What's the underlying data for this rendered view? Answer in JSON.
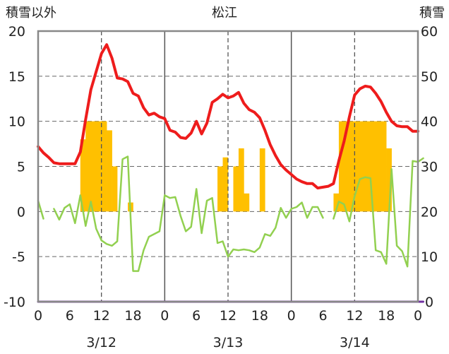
{
  "chart_data": {
    "type": "combo",
    "title": "松江",
    "left_axis": {
      "label": "積雪以外",
      "range": [
        -10,
        20
      ],
      "ticks": [
        "-10",
        "-5",
        "0",
        "5",
        "10",
        "15",
        "20"
      ]
    },
    "right_axis": {
      "label": "積雪",
      "range": [
        0,
        60
      ],
      "ticks": [
        "0",
        "10",
        "20",
        "30",
        "40",
        "50",
        "60"
      ]
    },
    "x_axis": {
      "range": [
        0,
        72
      ],
      "ticks": [
        0,
        6,
        12,
        18,
        24,
        30,
        36,
        42,
        48,
        54,
        60,
        66,
        72
      ],
      "tick_labels": [
        "0",
        "6",
        "12",
        "18",
        "0",
        "6",
        "12",
        "18",
        "0",
        "6",
        "12",
        "18",
        "0"
      ],
      "dates": [
        {
          "label": "3/12",
          "x": 12
        },
        {
          "label": "3/13",
          "x": 36
        },
        {
          "label": "3/14",
          "x": 60
        }
      ],
      "day_boundaries": [
        24,
        48
      ],
      "dashed_lines": [
        12,
        36,
        60
      ]
    },
    "grid": true,
    "series": [
      {
        "type": "bar",
        "axis": "left",
        "color": "#FFC000",
        "points": [
          [
            8,
            8
          ],
          [
            9,
            10
          ],
          [
            10,
            10
          ],
          [
            11,
            10
          ],
          [
            12,
            10
          ],
          [
            13,
            9
          ],
          [
            14,
            5
          ],
          [
            17,
            1
          ],
          [
            34,
            5
          ],
          [
            35,
            6
          ],
          [
            37,
            5
          ],
          [
            38,
            7
          ],
          [
            39,
            2
          ],
          [
            42,
            7
          ],
          [
            56,
            2
          ],
          [
            57,
            10
          ],
          [
            58,
            10
          ],
          [
            59,
            10
          ],
          [
            60,
            10
          ],
          [
            61,
            10
          ],
          [
            62,
            10
          ],
          [
            63,
            10
          ],
          [
            64,
            10
          ],
          [
            65,
            10
          ],
          [
            66,
            7
          ]
        ]
      },
      {
        "type": "line",
        "axis": "left",
        "color": "#EE1C1C",
        "points": [
          [
            0,
            7.2
          ],
          [
            1,
            6.5
          ],
          [
            2,
            6.0
          ],
          [
            3,
            5.4
          ],
          [
            4,
            5.3
          ],
          [
            5,
            5.3
          ],
          [
            6,
            5.3
          ],
          [
            7,
            5.3
          ],
          [
            8,
            6.6
          ],
          [
            9,
            10.2
          ],
          [
            10,
            13.5
          ],
          [
            11,
            15.5
          ],
          [
            12,
            17.5
          ],
          [
            13,
            18.5
          ],
          [
            14,
            17.0
          ],
          [
            15,
            14.8
          ],
          [
            16,
            14.7
          ],
          [
            17,
            14.4
          ],
          [
            18,
            13.1
          ],
          [
            19,
            12.8
          ],
          [
            20,
            11.5
          ],
          [
            21,
            10.7
          ],
          [
            22,
            10.9
          ],
          [
            23,
            10.5
          ],
          [
            24,
            10.3
          ],
          [
            25,
            9.0
          ],
          [
            26,
            8.8
          ],
          [
            27,
            8.2
          ],
          [
            28,
            8.1
          ],
          [
            29,
            8.7
          ],
          [
            30,
            10.0
          ],
          [
            31,
            8.6
          ],
          [
            32,
            9.8
          ],
          [
            33,
            12.1
          ],
          [
            34,
            12.5
          ],
          [
            35,
            13.0
          ],
          [
            36,
            12.6
          ],
          [
            37,
            12.8
          ],
          [
            38,
            13.2
          ],
          [
            39,
            12.0
          ],
          [
            40,
            11.3
          ],
          [
            41,
            11.0
          ],
          [
            42,
            10.4
          ],
          [
            43,
            9.0
          ],
          [
            44,
            7.4
          ],
          [
            45,
            6.2
          ],
          [
            46,
            5.2
          ],
          [
            47,
            4.6
          ],
          [
            48,
            4.1
          ],
          [
            49,
            3.6
          ],
          [
            50,
            3.3
          ],
          [
            51,
            3.1
          ],
          [
            52,
            3.1
          ],
          [
            53,
            2.6
          ],
          [
            54,
            2.7
          ],
          [
            55,
            2.8
          ],
          [
            56,
            3.1
          ],
          [
            57,
            5.6
          ],
          [
            58,
            7.8
          ],
          [
            59,
            10.5
          ],
          [
            60,
            12.9
          ],
          [
            61,
            13.6
          ],
          [
            62,
            13.9
          ],
          [
            63,
            13.8
          ],
          [
            64,
            13.1
          ],
          [
            65,
            12.2
          ],
          [
            66,
            11.0
          ],
          [
            67,
            10.0
          ],
          [
            68,
            9.5
          ],
          [
            69,
            9.4
          ],
          [
            70,
            9.4
          ],
          [
            71,
            8.9
          ],
          [
            72,
            8.9
          ]
        ]
      },
      {
        "type": "line",
        "axis": "left",
        "color": "#92D050",
        "points": [
          [
            0,
            1.2
          ],
          [
            1,
            -0.8
          ],
          [
            2,
            null
          ],
          [
            3,
            0.3
          ],
          [
            4,
            -0.9
          ],
          [
            5,
            0.4
          ],
          [
            6,
            0.8
          ],
          [
            7,
            -1.3
          ],
          [
            8,
            1.8
          ],
          [
            9,
            -1.6
          ],
          [
            10,
            1.1
          ],
          [
            11,
            -1.9
          ],
          [
            12,
            -3.2
          ],
          [
            13,
            -3.6
          ],
          [
            14,
            -3.8
          ],
          [
            15,
            -3.3
          ],
          [
            16,
            5.8
          ],
          [
            17,
            6.1
          ],
          [
            18,
            -6.6
          ],
          [
            19,
            -6.6
          ],
          [
            20,
            -4.3
          ],
          [
            21,
            -2.8
          ],
          [
            22,
            -2.5
          ],
          [
            23,
            -2.2
          ],
          [
            24,
            1.8
          ],
          [
            25,
            1.5
          ],
          [
            26,
            1.6
          ],
          [
            27,
            -0.5
          ],
          [
            28,
            -2.2
          ],
          [
            29,
            -1.7
          ],
          [
            30,
            2.5
          ],
          [
            31,
            -2.4
          ],
          [
            32,
            1.2
          ],
          [
            33,
            1.5
          ],
          [
            34,
            -3.5
          ],
          [
            35,
            -3.3
          ],
          [
            36,
            -5.0
          ],
          [
            37,
            -4.2
          ],
          [
            38,
            -4.3
          ],
          [
            39,
            -4.2
          ],
          [
            40,
            -4.3
          ],
          [
            41,
            -4.5
          ],
          [
            42,
            -4.0
          ],
          [
            43,
            -2.5
          ],
          [
            44,
            -2.7
          ],
          [
            45,
            -1.8
          ],
          [
            46,
            0.4
          ],
          [
            47,
            -0.7
          ],
          [
            48,
            0.3
          ],
          [
            49,
            0.5
          ],
          [
            50,
            1.0
          ],
          [
            51,
            -0.7
          ],
          [
            52,
            0.5
          ],
          [
            53,
            0.5
          ],
          [
            54,
            -0.7
          ],
          [
            55,
            null
          ],
          [
            56,
            -0.8
          ],
          [
            57,
            1.1
          ],
          [
            58,
            0.8
          ],
          [
            59,
            -1.1
          ],
          [
            60,
            1.7
          ],
          [
            61,
            3.6
          ],
          [
            62,
            3.8
          ],
          [
            63,
            3.7
          ],
          [
            64,
            -4.3
          ],
          [
            65,
            -4.5
          ],
          [
            66,
            -5.8
          ],
          [
            67,
            4.7
          ],
          [
            68,
            -3.8
          ],
          [
            69,
            -4.4
          ],
          [
            70,
            -6.1
          ],
          [
            71,
            5.6
          ],
          [
            72,
            5.5
          ],
          [
            73,
            5.9
          ]
        ]
      },
      {
        "type": "line",
        "axis": "right",
        "color": "#7030A0",
        "points": [
          [
            0,
            0
          ],
          [
            73,
            0
          ]
        ]
      }
    ]
  }
}
